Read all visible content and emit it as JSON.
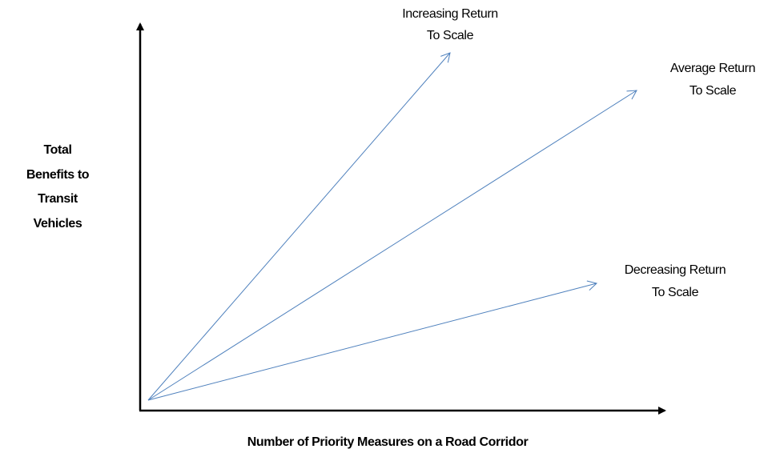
{
  "axes": {
    "y_label": [
      "Total",
      "Benefits to",
      "Transit",
      "Vehicles"
    ],
    "x_label": "Number of Priority Measures on a Road Corridor"
  },
  "curves": [
    {
      "label": [
        "Increasing Return",
        "To Scale"
      ]
    },
    {
      "label": [
        "Average Return",
        "To Scale"
      ]
    },
    {
      "label": [
        "Decreasing Return",
        "To Scale"
      ]
    }
  ]
}
